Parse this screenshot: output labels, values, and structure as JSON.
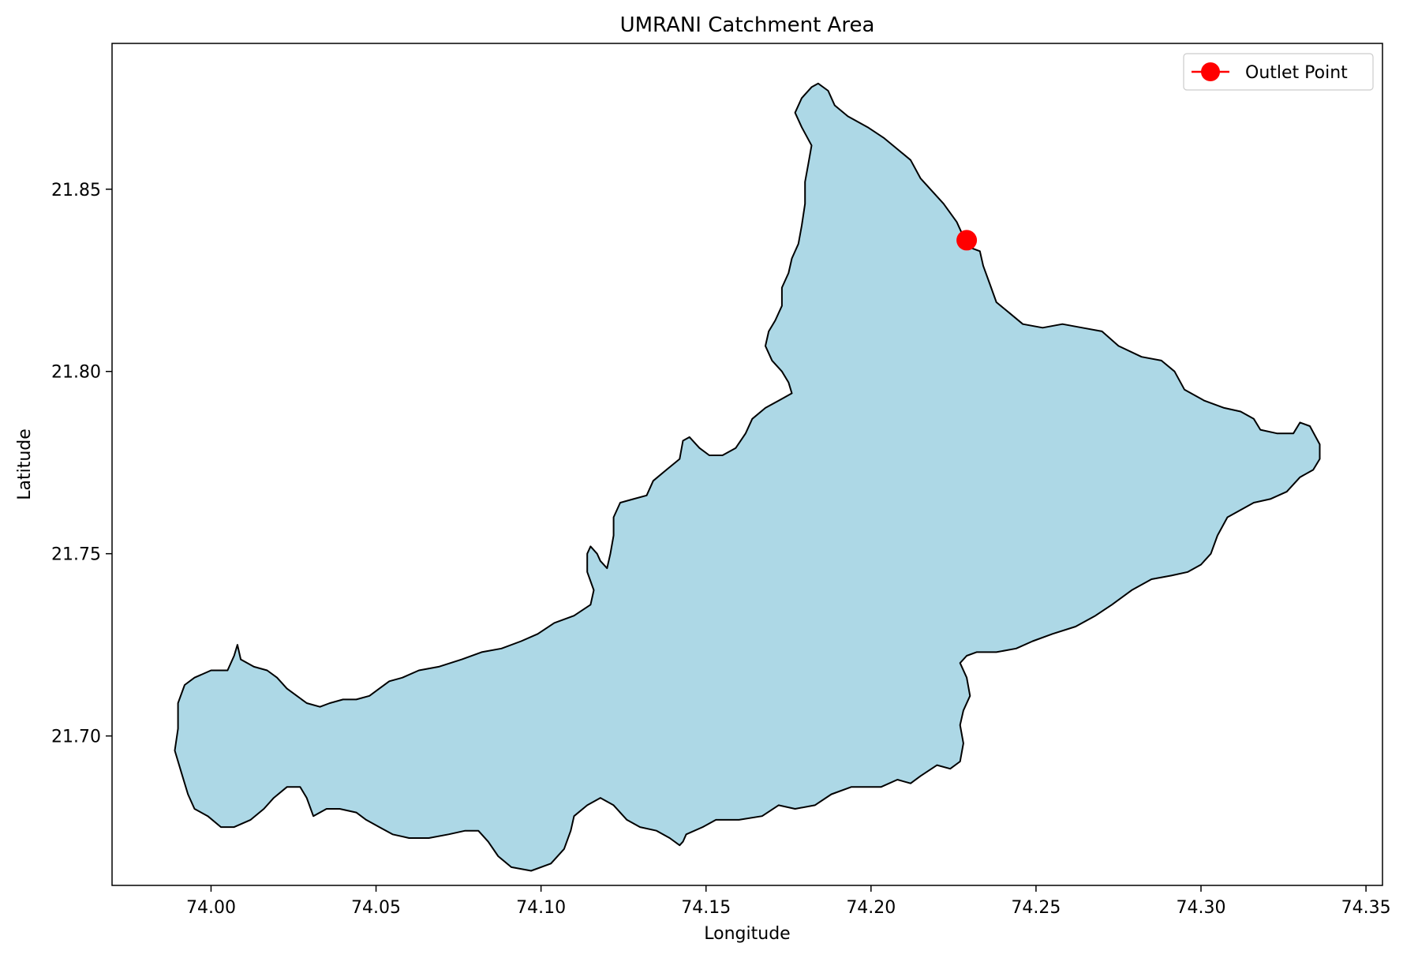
{
  "chart_data": {
    "type": "map",
    "title": "UMRANI Catchment Area",
    "xlabel": "Longitude",
    "ylabel": "Latitude",
    "xlim": [
      73.97,
      74.355
    ],
    "ylim": [
      21.659,
      21.89
    ],
    "xticks": [
      74.0,
      74.05,
      74.1,
      74.15,
      74.2,
      74.25,
      74.3,
      74.35
    ],
    "xtick_labels": [
      "74.00",
      "74.05",
      "74.10",
      "74.15",
      "74.20",
      "74.25",
      "74.30",
      "74.35"
    ],
    "yticks": [
      21.7,
      21.75,
      21.8,
      21.85
    ],
    "ytick_labels": [
      "21.70",
      "21.75",
      "21.80",
      "21.85"
    ],
    "grid": false,
    "legend": {
      "position": "top-right",
      "entries": [
        {
          "label": "Outlet Point",
          "color": "#ff0000",
          "marker": "circle-line"
        }
      ]
    },
    "catchment": {
      "fill": "#add8e6",
      "edge": "#000000",
      "boundary": [
        [
          74.184,
          21.879
        ],
        [
          74.187,
          21.877
        ],
        [
          74.189,
          21.873
        ],
        [
          74.193,
          21.87
        ],
        [
          74.199,
          21.867
        ],
        [
          74.204,
          21.864
        ],
        [
          74.208,
          21.861
        ],
        [
          74.212,
          21.858
        ],
        [
          74.215,
          21.853
        ],
        [
          74.219,
          21.849
        ],
        [
          74.222,
          21.846
        ],
        [
          74.226,
          21.841
        ],
        [
          74.228,
          21.837
        ],
        [
          74.23,
          21.834
        ],
        [
          74.233,
          21.833
        ],
        [
          74.234,
          21.829
        ],
        [
          74.236,
          21.824
        ],
        [
          74.238,
          21.819
        ],
        [
          74.242,
          21.816
        ],
        [
          74.246,
          21.813
        ],
        [
          74.252,
          21.812
        ],
        [
          74.258,
          21.813
        ],
        [
          74.264,
          21.812
        ],
        [
          74.27,
          21.811
        ],
        [
          74.275,
          21.807
        ],
        [
          74.282,
          21.804
        ],
        [
          74.288,
          21.803
        ],
        [
          74.292,
          21.8
        ],
        [
          74.295,
          21.795
        ],
        [
          74.301,
          21.792
        ],
        [
          74.307,
          21.79
        ],
        [
          74.312,
          21.789
        ],
        [
          74.316,
          21.787
        ],
        [
          74.318,
          21.784
        ],
        [
          74.323,
          21.783
        ],
        [
          74.328,
          21.783
        ],
        [
          74.33,
          21.786
        ],
        [
          74.333,
          21.785
        ],
        [
          74.336,
          21.78
        ],
        [
          74.336,
          21.776
        ],
        [
          74.334,
          21.773
        ],
        [
          74.33,
          21.771
        ],
        [
          74.326,
          21.767
        ],
        [
          74.321,
          21.765
        ],
        [
          74.316,
          21.764
        ],
        [
          74.312,
          21.762
        ],
        [
          74.308,
          21.76
        ],
        [
          74.305,
          21.755
        ],
        [
          74.303,
          21.75
        ],
        [
          74.3,
          21.747
        ],
        [
          74.296,
          21.745
        ],
        [
          74.291,
          21.744
        ],
        [
          74.285,
          21.743
        ],
        [
          74.279,
          21.74
        ],
        [
          74.273,
          21.736
        ],
        [
          74.268,
          21.733
        ],
        [
          74.262,
          21.73
        ],
        [
          74.255,
          21.728
        ],
        [
          74.249,
          21.726
        ],
        [
          74.244,
          21.724
        ],
        [
          74.238,
          21.723
        ],
        [
          74.232,
          21.723
        ],
        [
          74.229,
          21.722
        ],
        [
          74.227,
          21.72
        ],
        [
          74.229,
          21.716
        ],
        [
          74.23,
          21.711
        ],
        [
          74.228,
          21.707
        ],
        [
          74.227,
          21.703
        ],
        [
          74.228,
          21.698
        ],
        [
          74.227,
          21.693
        ],
        [
          74.224,
          21.691
        ],
        [
          74.22,
          21.692
        ],
        [
          74.215,
          21.689
        ],
        [
          74.212,
          21.687
        ],
        [
          74.208,
          21.688
        ],
        [
          74.203,
          21.686
        ],
        [
          74.198,
          21.686
        ],
        [
          74.194,
          21.686
        ],
        [
          74.188,
          21.684
        ],
        [
          74.183,
          21.681
        ],
        [
          74.177,
          21.68
        ],
        [
          74.172,
          21.681
        ],
        [
          74.167,
          21.678
        ],
        [
          74.16,
          21.677
        ],
        [
          74.153,
          21.677
        ],
        [
          74.149,
          21.675
        ],
        [
          74.144,
          21.673
        ],
        [
          74.143,
          21.671
        ],
        [
          74.142,
          21.67
        ],
        [
          74.139,
          21.672
        ],
        [
          74.135,
          21.674
        ],
        [
          74.13,
          21.675
        ],
        [
          74.126,
          21.677
        ],
        [
          74.122,
          21.681
        ],
        [
          74.118,
          21.683
        ],
        [
          74.114,
          21.681
        ],
        [
          74.11,
          21.678
        ],
        [
          74.109,
          21.674
        ],
        [
          74.107,
          21.669
        ],
        [
          74.103,
          21.665
        ],
        [
          74.097,
          21.663
        ],
        [
          74.091,
          21.664
        ],
        [
          74.087,
          21.667
        ],
        [
          74.084,
          21.671
        ],
        [
          74.081,
          21.674
        ],
        [
          74.077,
          21.674
        ],
        [
          74.072,
          21.673
        ],
        [
          74.066,
          21.672
        ],
        [
          74.06,
          21.672
        ],
        [
          74.055,
          21.673
        ],
        [
          74.051,
          21.675
        ],
        [
          74.047,
          21.677
        ],
        [
          74.044,
          21.679
        ],
        [
          74.039,
          21.68
        ],
        [
          74.035,
          21.68
        ],
        [
          74.031,
          21.678
        ],
        [
          74.029,
          21.683
        ],
        [
          74.027,
          21.686
        ],
        [
          74.023,
          21.686
        ],
        [
          74.019,
          21.683
        ],
        [
          74.016,
          21.68
        ],
        [
          74.012,
          21.677
        ],
        [
          74.007,
          21.675
        ],
        [
          74.003,
          21.675
        ],
        [
          73.999,
          21.678
        ],
        [
          73.995,
          21.68
        ],
        [
          73.993,
          21.684
        ],
        [
          73.991,
          21.69
        ],
        [
          73.989,
          21.696
        ],
        [
          73.99,
          21.702
        ],
        [
          73.99,
          21.709
        ],
        [
          73.992,
          21.714
        ],
        [
          73.995,
          21.716
        ],
        [
          74.0,
          21.718
        ],
        [
          74.005,
          21.718
        ],
        [
          74.007,
          21.722
        ],
        [
          74.008,
          21.725
        ],
        [
          74.009,
          21.721
        ],
        [
          74.013,
          21.719
        ],
        [
          74.017,
          21.718
        ],
        [
          74.02,
          21.716
        ],
        [
          74.023,
          21.713
        ],
        [
          74.026,
          21.711
        ],
        [
          74.029,
          21.709
        ],
        [
          74.033,
          21.708
        ],
        [
          74.036,
          21.709
        ],
        [
          74.04,
          21.71
        ],
        [
          74.044,
          21.71
        ],
        [
          74.048,
          21.711
        ],
        [
          74.051,
          21.713
        ],
        [
          74.054,
          21.715
        ],
        [
          74.058,
          21.716
        ],
        [
          74.063,
          21.718
        ],
        [
          74.069,
          21.719
        ],
        [
          74.076,
          21.721
        ],
        [
          74.082,
          21.723
        ],
        [
          74.088,
          21.724
        ],
        [
          74.094,
          21.726
        ],
        [
          74.099,
          21.728
        ],
        [
          74.104,
          21.731
        ],
        [
          74.11,
          21.733
        ],
        [
          74.115,
          21.736
        ],
        [
          74.116,
          21.74
        ],
        [
          74.114,
          21.745
        ],
        [
          74.114,
          21.75
        ],
        [
          74.115,
          21.752
        ],
        [
          74.117,
          21.75
        ],
        [
          74.118,
          21.748
        ],
        [
          74.12,
          21.746
        ],
        [
          74.121,
          21.75
        ],
        [
          74.122,
          21.755
        ],
        [
          74.122,
          21.76
        ],
        [
          74.124,
          21.764
        ],
        [
          74.128,
          21.765
        ],
        [
          74.132,
          21.766
        ],
        [
          74.134,
          21.77
        ],
        [
          74.138,
          21.773
        ],
        [
          74.142,
          21.776
        ],
        [
          74.143,
          21.781
        ],
        [
          74.145,
          21.782
        ],
        [
          74.148,
          21.779
        ],
        [
          74.151,
          21.777
        ],
        [
          74.155,
          21.777
        ],
        [
          74.159,
          21.779
        ],
        [
          74.162,
          21.783
        ],
        [
          74.164,
          21.787
        ],
        [
          74.168,
          21.79
        ],
        [
          74.172,
          21.792
        ],
        [
          74.176,
          21.794
        ],
        [
          74.175,
          21.797
        ],
        [
          74.173,
          21.8
        ],
        [
          74.17,
          21.803
        ],
        [
          74.168,
          21.807
        ],
        [
          74.169,
          21.811
        ],
        [
          74.171,
          21.814
        ],
        [
          74.173,
          21.818
        ],
        [
          74.173,
          21.823
        ],
        [
          74.175,
          21.827
        ],
        [
          74.176,
          21.831
        ],
        [
          74.178,
          21.835
        ],
        [
          74.179,
          21.84
        ],
        [
          74.18,
          21.846
        ],
        [
          74.18,
          21.852
        ],
        [
          74.181,
          21.857
        ],
        [
          74.182,
          21.862
        ],
        [
          74.179,
          21.867
        ],
        [
          74.177,
          21.871
        ],
        [
          74.179,
          21.875
        ],
        [
          74.182,
          21.878
        ]
      ]
    },
    "outlet_point": {
      "lon": 74.229,
      "lat": 21.836,
      "color": "#ff0000"
    }
  }
}
